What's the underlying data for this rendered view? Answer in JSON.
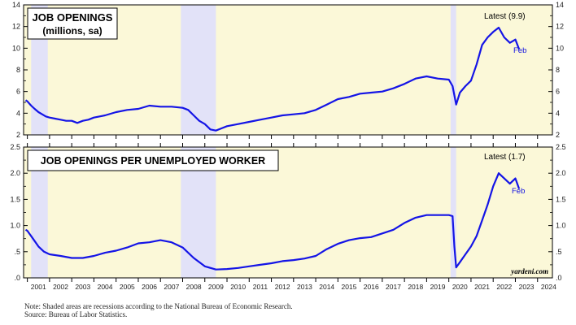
{
  "chart_data": [
    {
      "type": "line",
      "title": "JOB OPENINGS",
      "subtitle": "(millions, sa)",
      "annotation": "Latest (9.9)",
      "end_label": "Feb",
      "ylim": [
        2,
        14
      ],
      "yticks": [
        "2",
        "4",
        "6",
        "8",
        "10",
        "12",
        "14"
      ],
      "grid": false,
      "line_color": "#1414e6",
      "background_color": "#fbf8d8",
      "recession_color": "#e2e2f8",
      "series": [
        {
          "x": [
            2000.92,
            2001.0,
            2001.17,
            2001.33,
            2001.5,
            2001.67,
            2001.83,
            2002.0,
            2002.25,
            2002.5,
            2002.75,
            2003.0,
            2003.25,
            2003.5,
            2003.75,
            2004.0,
            2004.5,
            2005.0,
            2005.5,
            2006.0,
            2006.5,
            2007.0,
            2007.5,
            2008.0,
            2008.25,
            2008.5,
            2008.75,
            2009.0,
            2009.25,
            2009.5,
            2009.75,
            2010.0,
            2010.5,
            2011.0,
            2011.5,
            2012.0,
            2012.5,
            2013.0,
            2013.5,
            2014.0,
            2014.5,
            2015.0,
            2015.5,
            2016.0,
            2016.5,
            2017.0,
            2017.5,
            2018.0,
            2018.5,
            2019.0,
            2019.5,
            2020.0,
            2020.17,
            2020.33,
            2020.5,
            2020.75,
            2021.0,
            2021.25,
            2021.5,
            2021.75,
            2022.0,
            2022.25,
            2022.5,
            2022.75,
            2023.0,
            2023.17
          ],
          "values": [
            5.2,
            5.1,
            4.7,
            4.4,
            4.1,
            3.9,
            3.7,
            3.6,
            3.5,
            3.4,
            3.3,
            3.3,
            3.1,
            3.3,
            3.4,
            3.6,
            3.8,
            4.1,
            4.3,
            4.4,
            4.7,
            4.6,
            4.6,
            4.5,
            4.3,
            3.8,
            3.3,
            3.0,
            2.5,
            2.4,
            2.6,
            2.8,
            3.0,
            3.2,
            3.4,
            3.6,
            3.8,
            3.9,
            4.0,
            4.3,
            4.8,
            5.3,
            5.5,
            5.8,
            5.9,
            6.0,
            6.3,
            6.7,
            7.2,
            7.4,
            7.2,
            7.1,
            6.5,
            4.8,
            5.9,
            6.5,
            7.0,
            8.5,
            10.3,
            11.0,
            11.5,
            11.9,
            11.0,
            10.5,
            10.8,
            9.9
          ]
        }
      ]
    },
    {
      "type": "line",
      "title": "JOB OPENINGS PER UNEMPLOYED WORKER",
      "annotation": "Latest (1.7)",
      "end_label": "Feb",
      "source_label": "yardeni.com",
      "ylim": [
        0,
        2.5
      ],
      "yticks": [
        ".0",
        ".5",
        "1.0",
        "1.5",
        "2.0",
        "2.5"
      ],
      "grid": false,
      "line_color": "#1414e6",
      "background_color": "#fbf8d8",
      "recession_color": "#e2e2f8",
      "series": [
        {
          "x": [
            2000.92,
            2001.0,
            2001.25,
            2001.5,
            2001.75,
            2002.0,
            2002.5,
            2003.0,
            2003.5,
            2004.0,
            2004.5,
            2005.0,
            2005.5,
            2006.0,
            2006.5,
            2007.0,
            2007.5,
            2008.0,
            2008.5,
            2009.0,
            2009.5,
            2010.0,
            2010.5,
            2011.0,
            2011.5,
            2012.0,
            2012.5,
            2013.0,
            2013.5,
            2014.0,
            2014.5,
            2015.0,
            2015.5,
            2016.0,
            2016.5,
            2017.0,
            2017.5,
            2018.0,
            2018.5,
            2019.0,
            2019.5,
            2020.0,
            2020.17,
            2020.25,
            2020.33,
            2020.5,
            2020.75,
            2021.0,
            2021.25,
            2021.5,
            2021.75,
            2022.0,
            2022.25,
            2022.5,
            2022.75,
            2023.0,
            2023.17
          ],
          "values": [
            0.92,
            0.9,
            0.75,
            0.6,
            0.5,
            0.45,
            0.42,
            0.38,
            0.38,
            0.42,
            0.48,
            0.52,
            0.58,
            0.66,
            0.68,
            0.72,
            0.68,
            0.58,
            0.38,
            0.22,
            0.16,
            0.17,
            0.19,
            0.22,
            0.25,
            0.28,
            0.32,
            0.34,
            0.37,
            0.42,
            0.55,
            0.65,
            0.72,
            0.76,
            0.78,
            0.85,
            0.92,
            1.05,
            1.15,
            1.2,
            1.2,
            1.2,
            1.18,
            0.6,
            0.2,
            0.3,
            0.45,
            0.6,
            0.8,
            1.1,
            1.4,
            1.75,
            2.0,
            1.9,
            1.8,
            1.9,
            1.7
          ]
        }
      ]
    }
  ],
  "x_axis": {
    "xlim": [
      2000.83,
      2024.67
    ],
    "year_labels": [
      "2001",
      "2002",
      "2003",
      "2004",
      "2005",
      "2006",
      "2007",
      "2008",
      "2009",
      "2010",
      "2011",
      "2012",
      "2013",
      "2014",
      "2015",
      "2016",
      "2017",
      "2018",
      "2019",
      "2020",
      "2021",
      "2022",
      "2023",
      "2024"
    ]
  },
  "recessions": [
    [
      2001.17,
      2001.92
    ],
    [
      2007.92,
      2009.5
    ],
    [
      2020.08,
      2020.33
    ]
  ],
  "notes": {
    "line1": "Note: Shaded areas are recessions according to the National Bureau of Economic Research.",
    "line2": "Source: Bureau of Labor Statistics."
  }
}
